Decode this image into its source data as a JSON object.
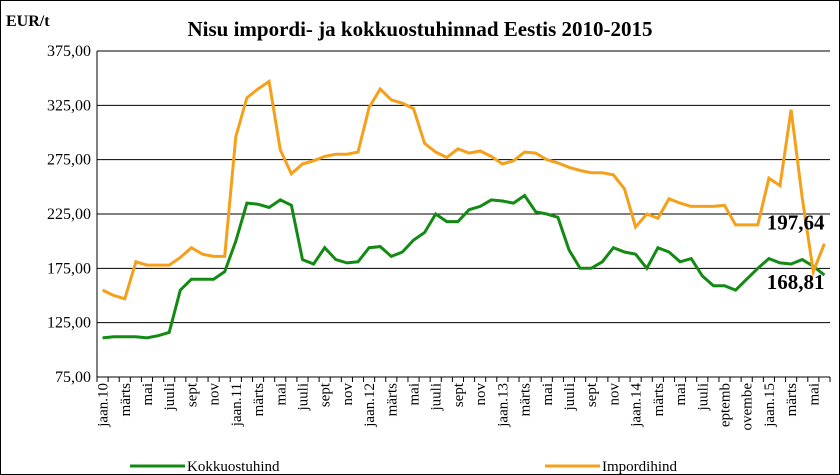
{
  "chart_data": {
    "type": "line",
    "title": "Nisu impordi- ja kokkuostuhinnad Eestis 2010-2015",
    "y_label": "EUR/t",
    "categories": [
      "jaan.10",
      null,
      "märts",
      null,
      "mai",
      null,
      "juuli",
      null,
      "sept",
      null,
      "nov",
      null,
      "jaan.11",
      null,
      "märts",
      null,
      "mai",
      null,
      "juuli",
      null,
      "sept",
      null,
      "nov",
      null,
      "jaan.12",
      null,
      "märts",
      null,
      "mai",
      null,
      "juuli",
      null,
      "sept",
      null,
      "nov",
      null,
      "jaan.13",
      null,
      "märts",
      null,
      "mai",
      null,
      "juuli",
      null,
      "sept",
      null,
      "nov",
      null,
      "jaan.14",
      null,
      "märts",
      null,
      "mai",
      null,
      "juuli",
      null,
      "eptemb",
      null,
      "ovembe",
      null,
      "jaan.15",
      null,
      "märts",
      null,
      "mai",
      null
    ],
    "series": [
      {
        "name": "Kokkuostuhind",
        "color": "#138a13",
        "values": [
          111,
          112,
          112,
          112,
          111,
          113,
          116,
          155,
          165,
          165,
          165,
          172,
          200,
          235,
          234,
          231,
          238,
          233,
          183,
          179,
          194,
          183,
          180,
          181,
          194,
          195,
          186,
          190,
          201,
          208,
          225,
          218,
          218,
          229,
          232,
          238,
          237,
          235,
          242,
          227,
          225,
          222,
          192,
          175,
          175,
          181,
          194,
          190,
          188,
          175,
          194,
          190,
          181,
          184,
          168,
          159,
          159,
          155,
          165,
          175,
          184,
          180,
          179,
          183,
          177,
          168.81
        ],
        "value_labels": [
          null,
          null,
          null,
          null,
          null,
          null,
          null,
          null,
          null,
          null,
          null,
          null,
          null,
          null,
          null,
          null,
          null,
          null,
          null,
          null,
          null,
          null,
          null,
          null,
          null,
          null,
          null,
          null,
          null,
          null,
          null,
          null,
          null,
          null,
          null,
          null,
          null,
          null,
          null,
          null,
          null,
          null,
          null,
          null,
          null,
          null,
          null,
          null,
          null,
          null,
          null,
          null,
          null,
          null,
          null,
          null,
          null,
          null,
          null,
          null,
          null,
          null,
          null,
          null,
          null,
          "168,81"
        ]
      },
      {
        "name": "Impordihind",
        "color": "#f5a01a",
        "values": [
          155,
          150,
          147,
          181,
          178,
          178,
          178,
          185,
          194,
          188,
          186,
          186,
          296,
          332,
          340,
          347,
          284,
          262,
          271,
          274,
          278,
          280,
          280,
          282,
          323,
          340,
          330,
          327,
          322,
          290,
          282,
          277,
          285,
          281,
          283,
          278,
          271,
          274,
          282,
          281,
          275,
          272,
          268,
          265,
          263,
          263,
          261,
          248,
          213,
          225,
          221,
          239,
          235,
          232,
          232,
          232,
          233,
          215,
          215,
          215,
          258,
          251,
          321,
          240,
          172,
          197.64
        ],
        "value_labels": [
          null,
          null,
          null,
          null,
          null,
          null,
          null,
          null,
          null,
          null,
          null,
          null,
          null,
          null,
          null,
          null,
          null,
          null,
          null,
          null,
          null,
          null,
          null,
          null,
          null,
          null,
          null,
          null,
          null,
          null,
          null,
          null,
          null,
          null,
          null,
          null,
          null,
          null,
          null,
          null,
          null,
          null,
          null,
          null,
          null,
          null,
          null,
          null,
          null,
          null,
          null,
          null,
          null,
          null,
          null,
          null,
          null,
          null,
          null,
          null,
          null,
          null,
          null,
          null,
          null,
          "197,64"
        ]
      }
    ],
    "ylim": [
      75,
      375
    ],
    "yticks": [
      {
        "value": 75,
        "label": "75,00"
      },
      {
        "value": 125,
        "label": "125,00"
      },
      {
        "value": 175,
        "label": "175,00"
      },
      {
        "value": 225,
        "label": "225,00"
      },
      {
        "value": 275,
        "label": "275,00"
      },
      {
        "value": 325,
        "label": "325,00"
      },
      {
        "value": 375,
        "label": "375,00"
      }
    ],
    "grid": true
  }
}
